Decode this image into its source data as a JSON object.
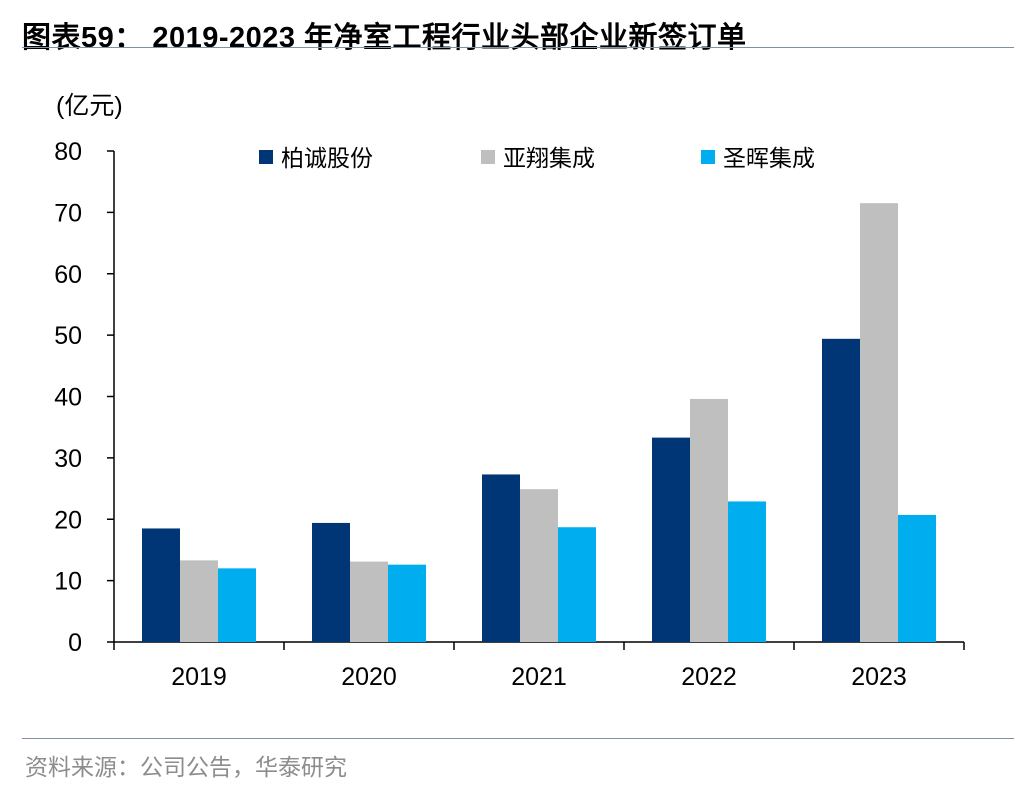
{
  "title": "图表59：  2019-2023 年净室工程行业头部企业新签订单",
  "source": "资料来源：公司公告，华泰研究",
  "chart_data": {
    "type": "bar",
    "unit_label": "(亿元)",
    "categories": [
      "2019",
      "2020",
      "2021",
      "2022",
      "2023"
    ],
    "series": [
      {
        "name": "柏诚股份",
        "color": "#003576",
        "values": [
          18.5,
          19.4,
          27.3,
          33.3,
          49.4
        ]
      },
      {
        "name": "亚翔集成",
        "color": "#bfbfbf",
        "values": [
          13.3,
          13.1,
          24.9,
          39.6,
          71.5
        ]
      },
      {
        "name": "圣晖集成",
        "color": "#00adee",
        "values": [
          12.0,
          12.6,
          18.7,
          22.9,
          20.7
        ]
      }
    ],
    "ylim": [
      0,
      80
    ],
    "yticks": [
      0,
      10,
      20,
      30,
      40,
      50,
      60,
      70,
      80
    ],
    "legend_position": "top"
  }
}
